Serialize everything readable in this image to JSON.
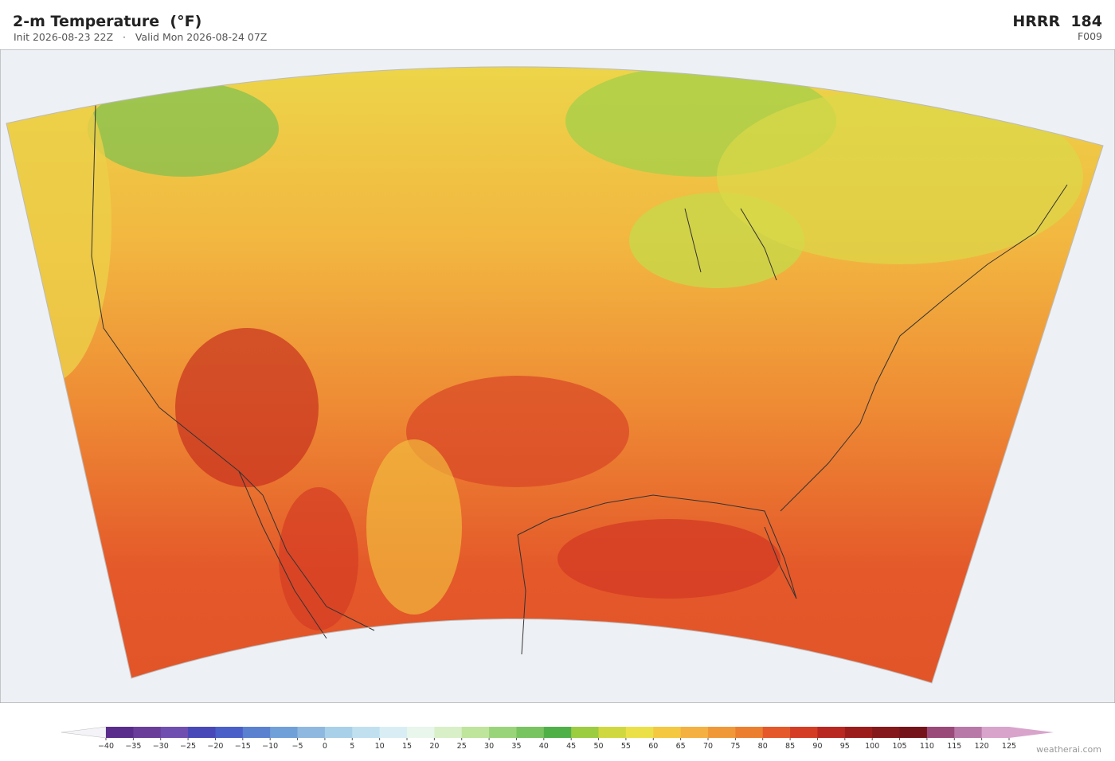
{
  "header": {
    "title": "2-m Temperature  (°F)",
    "subtitle": "Init 2026-08-23 22Z   ·   Valid Mon 2026-08-24 07Z",
    "model": "HRRR  184",
    "forecast_hour": "F009"
  },
  "colorbar": {
    "ticks": [
      {
        "value": -40,
        "label": "−40"
      },
      {
        "value": -35,
        "label": "−35"
      },
      {
        "value": -30,
        "label": "−30"
      },
      {
        "value": -25,
        "label": "−25"
      },
      {
        "value": -20,
        "label": "−20"
      },
      {
        "value": -15,
        "label": "−15"
      },
      {
        "value": -10,
        "label": "−10"
      },
      {
        "value": -5,
        "label": "−5"
      },
      0,
      5,
      10,
      15,
      20,
      25,
      30,
      35,
      40,
      45,
      50,
      55,
      60,
      65,
      70,
      75,
      80,
      85,
      90,
      95,
      100,
      105,
      110,
      115,
      120,
      125
    ],
    "colors": [
      "#5a2d8c",
      "#6a3d9a",
      "#6f4fb0",
      "#4848b8",
      "#4a5fc8",
      "#5a80d0",
      "#70a0d8",
      "#8fb8e0",
      "#a8d0e8",
      "#c0e0f0",
      "#d8eef4",
      "#e8f6ec",
      "#d8efc8",
      "#bfe49c",
      "#9ad47a",
      "#78c460",
      "#50b048",
      "#9ccc40",
      "#d0d840",
      "#ece048",
      "#f4c840",
      "#f4b040",
      "#f09838",
      "#ec7e30",
      "#e4582a",
      "#d43c24",
      "#b82820",
      "#9c1c1c",
      "#84181a",
      "#74141a",
      "#9a4a78",
      "#b878a8",
      "#d8a4cc"
    ],
    "under_color": "#f4f4f8",
    "over_color": "#d8a4cc"
  },
  "watermark": "weatherai.com"
}
